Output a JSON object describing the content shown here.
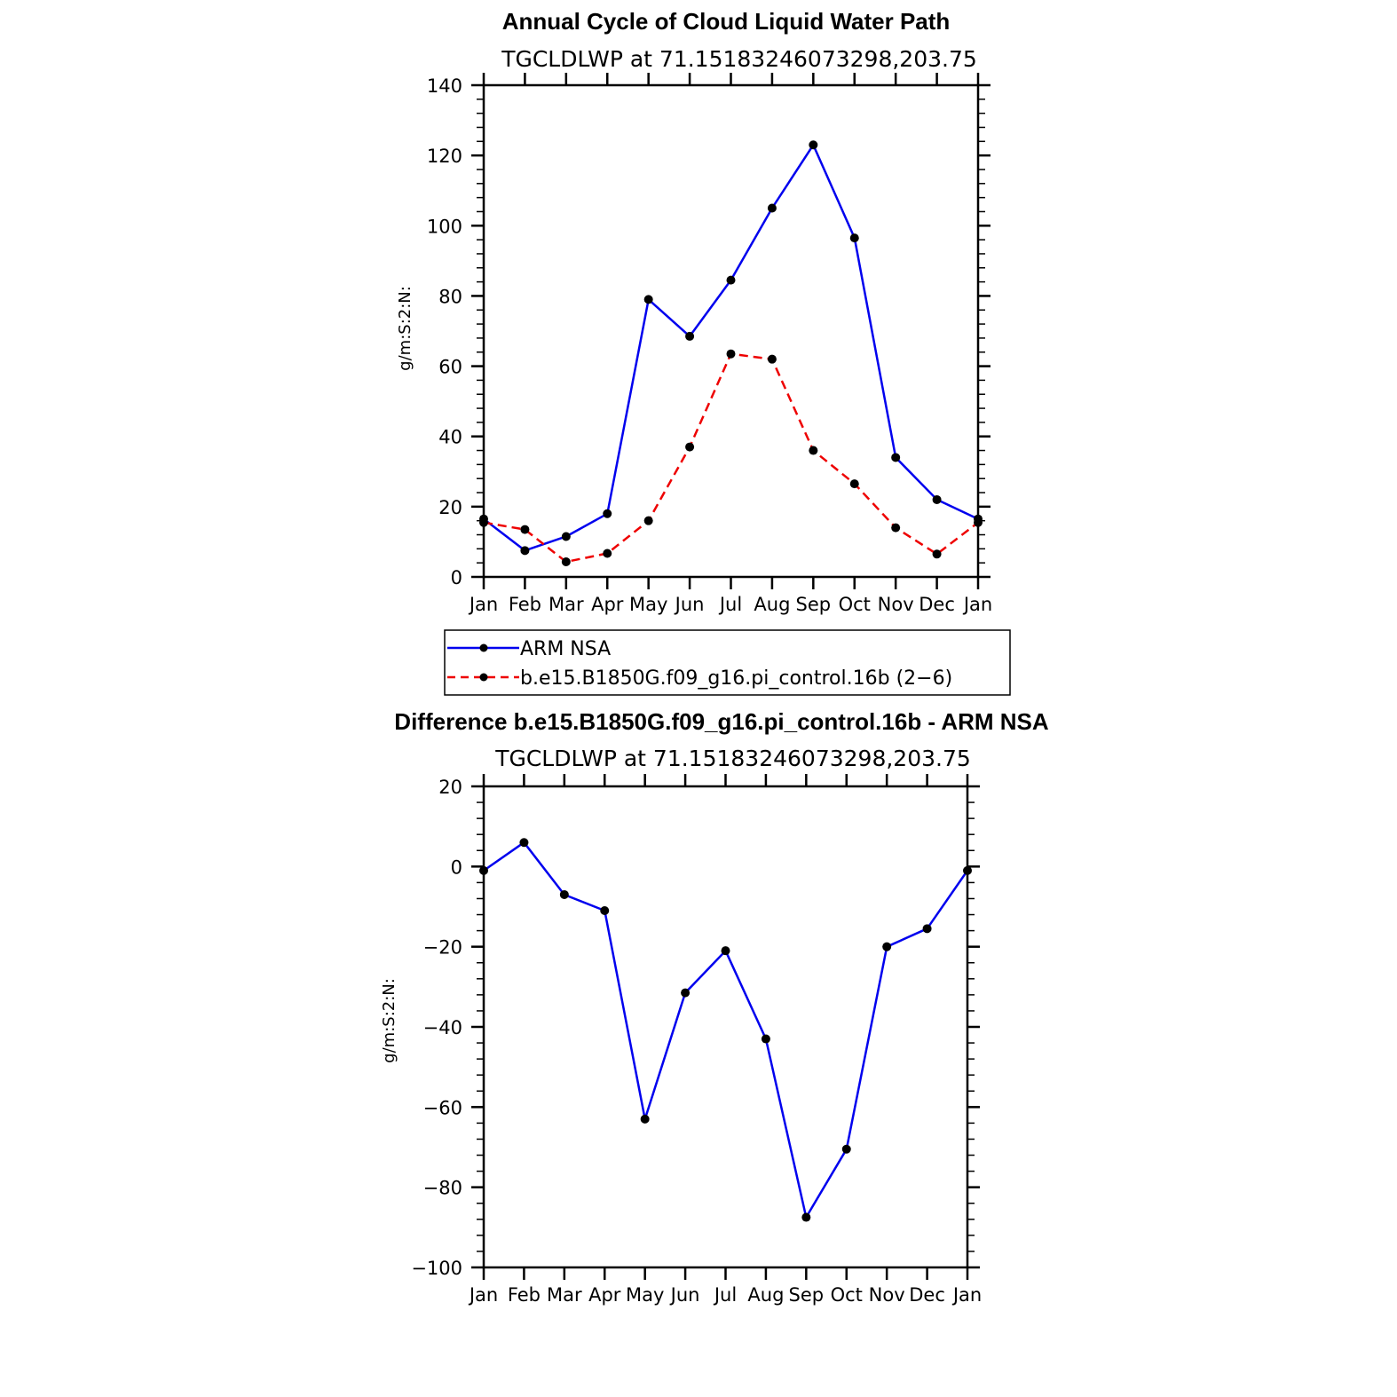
{
  "colors": {
    "model": "#0000ee",
    "model_dashed": "#ee0000",
    "marker": "#000000",
    "axis": "#000000"
  },
  "chart_data": [
    {
      "type": "line",
      "title": "Annual Cycle of Cloud Liquid Water Path",
      "subtitle": "TGCLDLWP  at  71.15183246073298,203.75",
      "ylabel": "g/m:S:2:N:",
      "categories": [
        "Jan",
        "Feb",
        "Mar",
        "Apr",
        "May",
        "Jun",
        "Jul",
        "Aug",
        "Sep",
        "Oct",
        "Nov",
        "Dec",
        "Jan"
      ],
      "ylim": [
        0,
        140
      ],
      "yticks": [
        0,
        20,
        40,
        60,
        80,
        100,
        120,
        140
      ],
      "yminor": 5,
      "legend_position": "below",
      "series": [
        {
          "name": "ARM  NSA",
          "style": "solid",
          "color": "#0000ee",
          "values": [
            16.5,
            7.5,
            11.5,
            18,
            79,
            68.5,
            84.5,
            105,
            123,
            96.5,
            34,
            22,
            16.5
          ]
        },
        {
          "name": "b.e15.B1850G.f09_g16.pi_control.16b  (2−6)",
          "style": "dashed",
          "color": "#ee0000",
          "values": [
            15.5,
            13.5,
            4.3,
            6.7,
            16,
            37,
            63.5,
            62,
            36,
            26.5,
            14,
            6.5,
            15.5
          ]
        }
      ]
    },
    {
      "type": "line",
      "title": "Difference b.e15.B1850G.f09_g16.pi_control.16b - ARM NSA",
      "subtitle": "TGCLDLWP  at  71.15183246073298,203.75",
      "ylabel": "g/m:S:2:N:",
      "categories": [
        "Jan",
        "Feb",
        "Mar",
        "Apr",
        "May",
        "Jun",
        "Jul",
        "Aug",
        "Sep",
        "Oct",
        "Nov",
        "Dec",
        "Jan"
      ],
      "ylim": [
        -100,
        20
      ],
      "yticks": [
        -100,
        -80,
        -60,
        -40,
        -20,
        0,
        20
      ],
      "yminor": 5,
      "series": [
        {
          "name": "Difference",
          "style": "solid",
          "color": "#0000ee",
          "values": [
            -1,
            6,
            -7,
            -11,
            -63,
            -31.5,
            -21,
            -43,
            -87.5,
            -70.5,
            -20,
            -15.5,
            -1
          ]
        }
      ]
    }
  ]
}
